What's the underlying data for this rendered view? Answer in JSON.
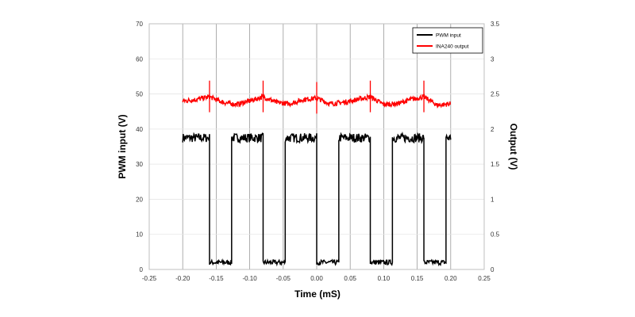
{
  "chart_data": {
    "type": "line",
    "title": "",
    "xlabel": "Time (mS)",
    "ylabel": "PWM input (V)",
    "y2label": "Output (V)",
    "xlim": [
      -0.25,
      0.25
    ],
    "ylim": [
      0,
      70
    ],
    "y2lim": [
      0,
      3.5
    ],
    "x_ticks": [
      "-0.25",
      "-0.20",
      "-0.15",
      "-0.10",
      "-0.05",
      "0.00",
      "0.05",
      "0.10",
      "0.15",
      "0.20",
      "0.25"
    ],
    "y_ticks": [
      "0",
      "10",
      "20",
      "30",
      "40",
      "50",
      "60",
      "70"
    ],
    "y2_ticks": [
      "0",
      "0.5",
      "1",
      "1.5",
      "2",
      "2.5",
      "3",
      "3.5"
    ],
    "grid": true,
    "legend_position": "top-right",
    "series": [
      {
        "name": "PWM input",
        "axis": "left",
        "color": "#000000",
        "x": [
          -0.2,
          -0.16,
          -0.16,
          -0.127,
          -0.127,
          -0.08,
          -0.08,
          -0.047,
          -0.047,
          0.0,
          0.0,
          0.033,
          0.033,
          0.08,
          0.08,
          0.113,
          0.113,
          0.16,
          0.16,
          0.193,
          0.193,
          0.2
        ],
        "y": [
          37.5,
          37.5,
          2,
          2,
          37.5,
          37.5,
          2,
          2,
          37.5,
          37.5,
          2,
          2,
          37.5,
          37.5,
          2,
          2,
          37.5,
          37.5,
          2,
          2,
          37.5,
          37.5
        ]
      },
      {
        "name": "INA240 output",
        "axis": "right",
        "color": "#ff0000",
        "x": [
          -0.2,
          -0.18,
          -0.16,
          -0.14,
          -0.12,
          -0.1,
          -0.08,
          -0.06,
          -0.04,
          -0.02,
          0.0,
          0.02,
          0.04,
          0.06,
          0.08,
          0.1,
          0.12,
          0.14,
          0.16,
          0.18,
          0.2
        ],
        "y": [
          2.4,
          2.42,
          2.46,
          2.38,
          2.35,
          2.4,
          2.46,
          2.38,
          2.36,
          2.42,
          2.44,
          2.36,
          2.38,
          2.42,
          2.46,
          2.35,
          2.36,
          2.42,
          2.46,
          2.34,
          2.36
        ],
        "spikes_x": [
          -0.16,
          -0.08,
          0.0,
          0.08,
          0.16
        ]
      }
    ]
  }
}
